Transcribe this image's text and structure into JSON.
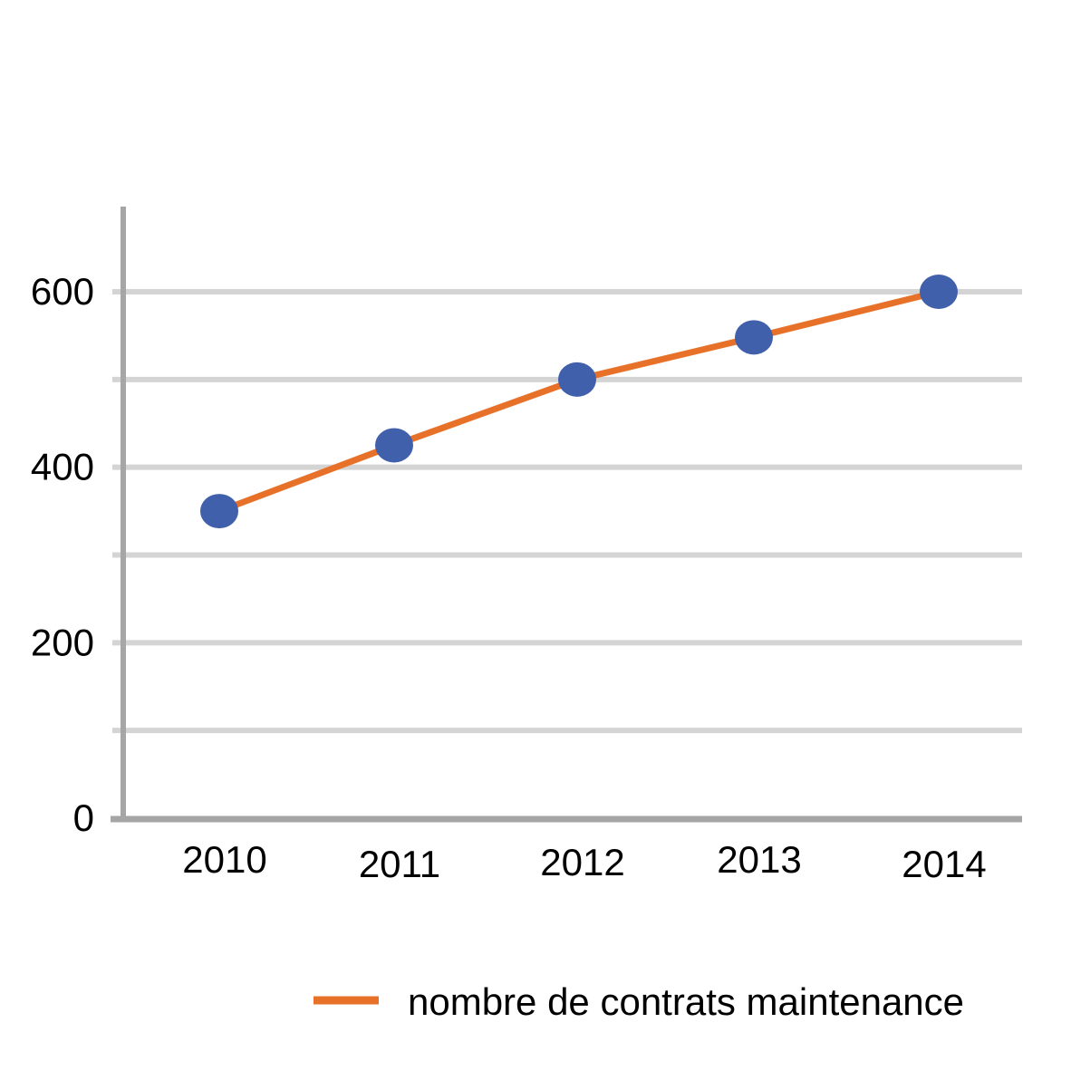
{
  "chart_data": {
    "type": "line",
    "title": "",
    "xlabel": "",
    "ylabel": "",
    "categories": [
      "2010",
      "2011",
      "2012",
      "2013",
      "2014"
    ],
    "series": [
      {
        "name": "nombre de contrats maintenance",
        "values": [
          350,
          425,
          500,
          548,
          600
        ],
        "line_color": "#e8712a",
        "marker_color": "#4060ac"
      }
    ],
    "y_ticks": [
      "0",
      "200",
      "400",
      "600"
    ],
    "ylim": [
      0,
      700
    ],
    "grid": true,
    "grid_color": "#d4d4d4",
    "axis_color": "#a6a6a6",
    "legend_position": "bottom-right"
  }
}
